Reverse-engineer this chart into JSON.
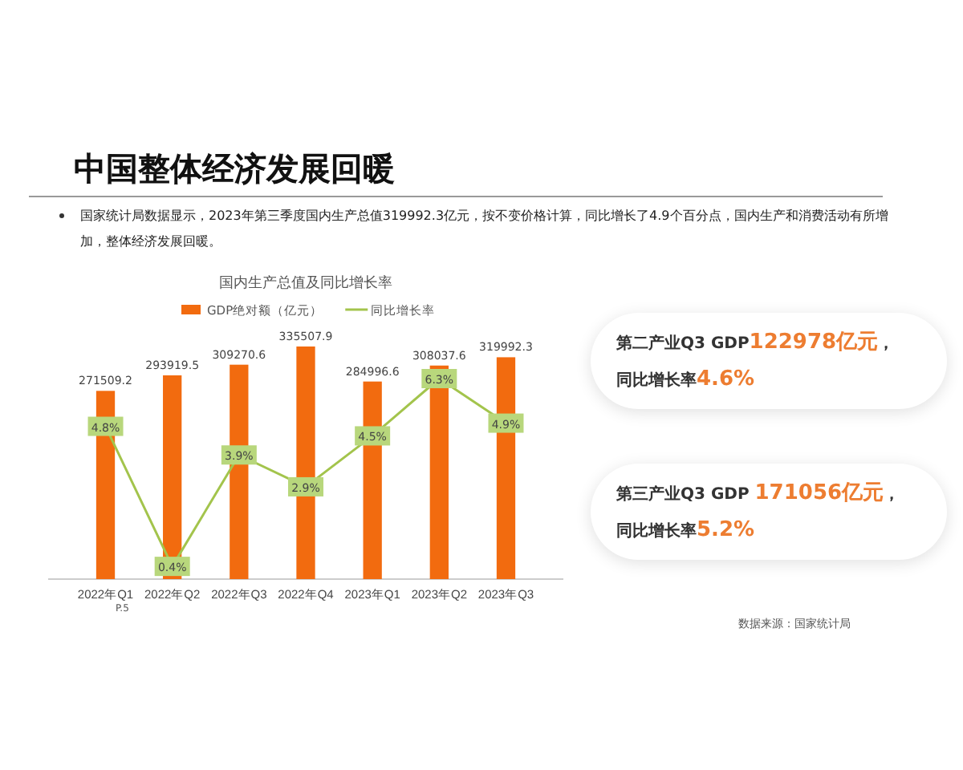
{
  "chart_data": [
    {
      "type": "other",
      "title": "中国整体经济发展回暖",
      "subtitle": "国家统计局数据显示，2023年第三季度国内生产总值319992.3亿元，按不变价格计算，同比增长了4.9个百分点，国内生产和消费活动有所增加，整体经济发展回暖。",
      "annotations": [
        "P.5",
        "数据来源：国家统计局"
      ]
    },
    {
      "type": "bar",
      "title": "国内生产总值及同比增长率",
      "categories": [
        "2022年Q1",
        "2022年Q2",
        "2022年Q3",
        "2022年Q4",
        "2023年Q1",
        "2023年Q2",
        "2023年Q3"
      ],
      "tick_labels": "x",
      "legend": "top",
      "data_labels": true,
      "marker": "square",
      "series": [
        {
          "name": "GDP绝对额（亿元）",
          "type": "bar",
          "color": "#f26b0f",
          "values": [
            271509.2,
            293919.5,
            309270.6,
            335507.9,
            284996.6,
            308037.6,
            319992.3
          ]
        },
        {
          "name": "同比增长率",
          "type": "line",
          "axis": "y2",
          "color": "#a3c44c",
          "values": [
            4.8,
            0.4,
            3.9,
            2.9,
            4.5,
            6.3,
            4.9
          ],
          "value_labels": [
            "4.8%",
            "0.4%",
            "3.9%",
            "2.9%",
            "4.5%",
            "6.3%",
            "4.9%"
          ]
        }
      ]
    },
    {
      "type": "other",
      "annotations": [
        "第二产业Q3 GDP122978亿元，",
        "同比增长率4.6%",
        "第三产业Q3 GDP 171056亿元，",
        "同比增长率5.2%"
      ]
    }
  ]
}
